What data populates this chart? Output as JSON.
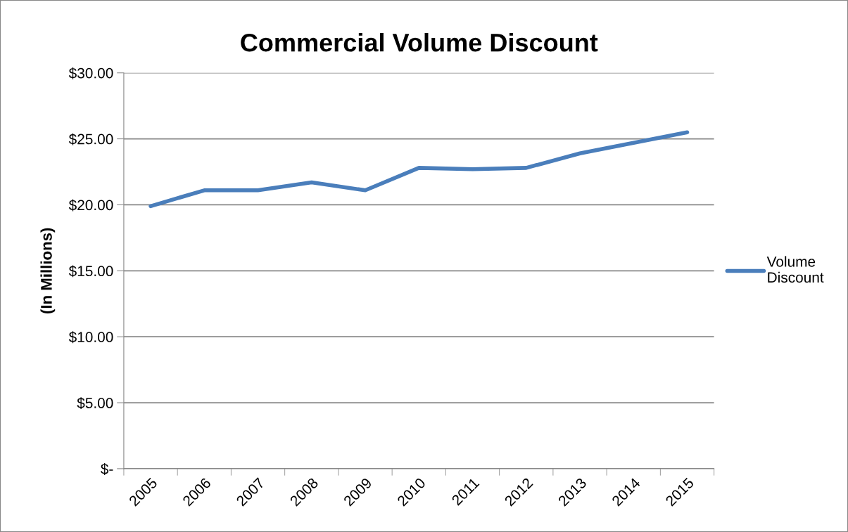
{
  "chart_data": {
    "type": "line",
    "title": "Commercial Volume Discount",
    "ylabel": "(In Millions)",
    "categories": [
      "2005",
      "2006",
      "2007",
      "2008",
      "2009",
      "2010",
      "2011",
      "2012",
      "2013",
      "2014",
      "2015"
    ],
    "series": [
      {
        "name": "Volume\nDiscount",
        "color": "#4a7ebb",
        "values": [
          19.9,
          21.1,
          21.1,
          21.7,
          21.1,
          22.8,
          22.7,
          22.8,
          23.9,
          24.7,
          25.5
        ]
      }
    ],
    "ylim": [
      0,
      30
    ],
    "yticks": [
      {
        "value": 0,
        "label": "$-"
      },
      {
        "value": 5,
        "label": "$5.00"
      },
      {
        "value": 10,
        "label": "$10.00"
      },
      {
        "value": 15,
        "label": "$15.00"
      },
      {
        "value": 20,
        "label": "$20.00"
      },
      {
        "value": 25,
        "label": "$25.00"
      },
      {
        "value": 30,
        "label": "$30.00"
      }
    ],
    "grid": "y",
    "legend": "right",
    "marker": "none",
    "line_style": "solid"
  }
}
